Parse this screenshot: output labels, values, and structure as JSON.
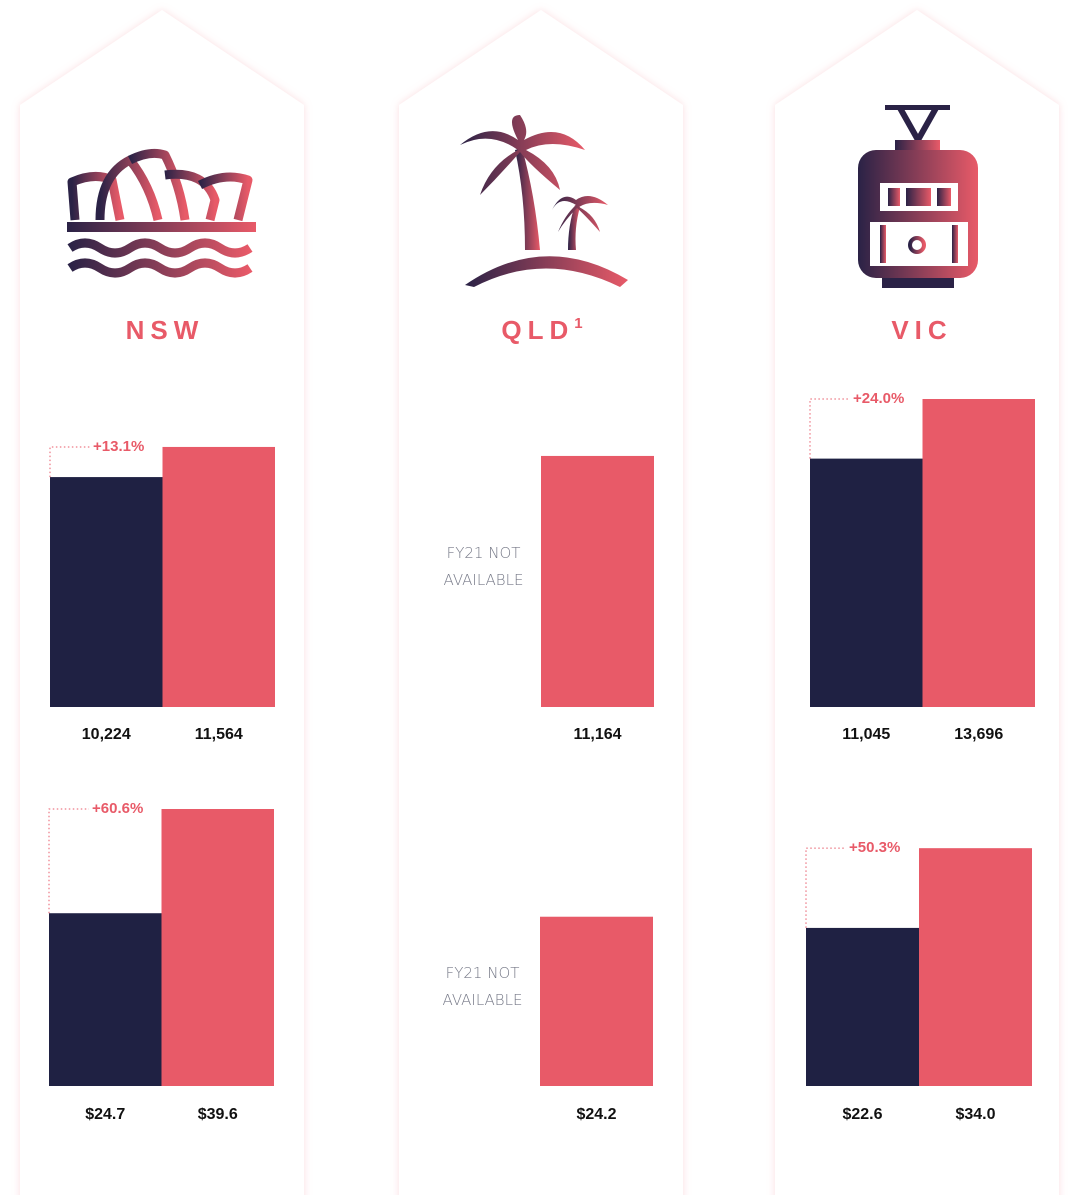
{
  "regions": [
    {
      "name": "NSW"
    },
    {
      "name": "QLD",
      "footnote_mark": "1"
    },
    {
      "name": "VIC"
    }
  ],
  "chart_data": [
    {
      "type": "bar",
      "values": [
        10224,
        11564
      ],
      "value_labels": [
        "10,224",
        "11,564"
      ],
      "colors": [
        "#1f2143",
        "#e85a68"
      ],
      "annotation": "+13.1%"
    },
    {
      "type": "bar",
      "values": [
        24.7,
        39.6
      ],
      "value_labels": [
        "$24.7",
        "$39.6"
      ],
      "colors": [
        "#1f2143",
        "#e85a68"
      ],
      "annotation": "+60.6%"
    },
    {
      "type": "bar",
      "values": [
        null,
        11164
      ],
      "value_labels": [
        null,
        "11,164"
      ],
      "colors": [
        "#1f2143",
        "#e85a68"
      ],
      "note": "FY21 NOT AVAILABLE"
    },
    {
      "type": "bar",
      "values": [
        null,
        24.2
      ],
      "value_labels": [
        null,
        "$24.2"
      ],
      "colors": [
        "#1f2143",
        "#e85a68"
      ],
      "note": "FY21 NOT AVAILABLE"
    },
    {
      "type": "bar",
      "values": [
        11045,
        13696
      ],
      "value_labels": [
        "11,045",
        "13,696"
      ],
      "colors": [
        "#1f2143",
        "#e85a68"
      ],
      "annotation": "+24.0%"
    },
    {
      "type": "bar",
      "values": [
        22.6,
        34.0
      ],
      "value_labels": [
        "$22.6",
        "$34.0"
      ],
      "colors": [
        "#1f2143",
        "#e85a68"
      ],
      "annotation": "+50.3%"
    }
  ]
}
